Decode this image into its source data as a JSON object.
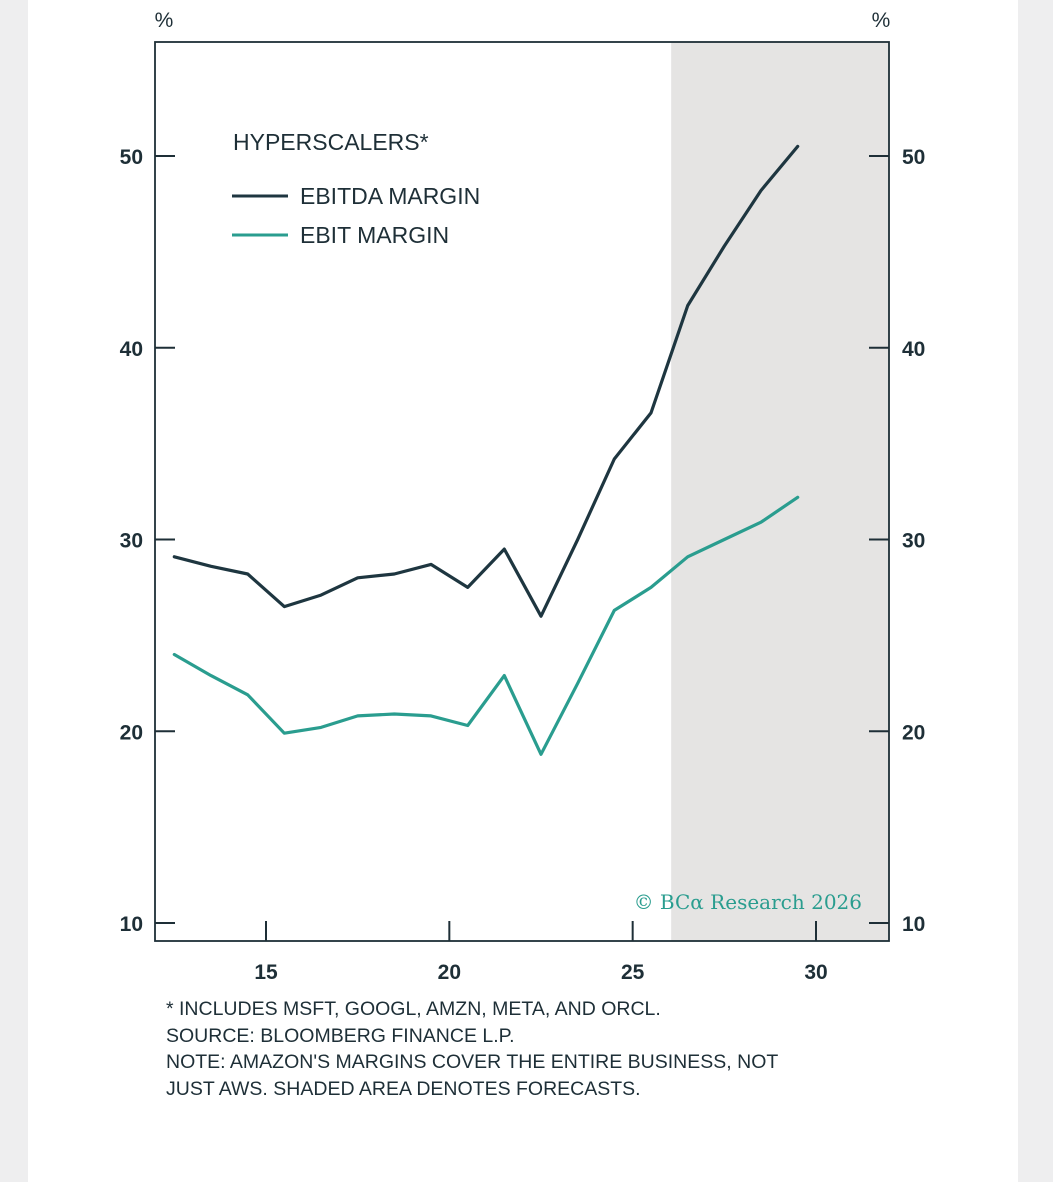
{
  "chart_data": {
    "type": "line",
    "title": "HYPERSCALERS*",
    "unit_left": "%",
    "unit_right": "%",
    "xlim": [
      12.5,
      32
    ],
    "ylim": [
      9,
      56
    ],
    "x_ticks": [
      15,
      20,
      25,
      30
    ],
    "y_ticks": [
      10,
      20,
      30,
      40,
      50
    ],
    "forecast_shade": {
      "from": 26.05,
      "to": 32
    },
    "legend_position": "top-left",
    "series": [
      {
        "name": "EBITDA MARGIN",
        "color": "#1e3640",
        "x": [
          12.5,
          13.5,
          14.5,
          15.5,
          16.5,
          17.5,
          18.5,
          19.5,
          20.5,
          21.5,
          22.5,
          23.5,
          24.5,
          25.5,
          26.5,
          27.5,
          28.5,
          29.5
        ],
        "values": [
          29.1,
          28.6,
          28.2,
          26.5,
          27.1,
          28.0,
          28.2,
          28.7,
          27.5,
          29.5,
          26.0,
          30.0,
          34.2,
          36.6,
          42.2,
          45.3,
          48.2,
          50.5
        ]
      },
      {
        "name": "EBIT MARGIN",
        "color": "#2a9d8f",
        "x": [
          12.5,
          13.5,
          14.5,
          15.5,
          16.5,
          17.5,
          18.5,
          19.5,
          20.5,
          21.5,
          22.5,
          23.5,
          24.5,
          25.5,
          26.5,
          27.5,
          28.5,
          29.5
        ],
        "values": [
          24.0,
          22.9,
          21.9,
          19.9,
          20.2,
          20.8,
          20.9,
          20.8,
          20.3,
          22.9,
          18.8,
          22.5,
          26.3,
          27.5,
          29.1,
          30.0,
          30.9,
          32.2
        ]
      }
    ],
    "watermark": "© BCα Research 2026"
  },
  "notes": [
    "* INCLUDES MSFT, GOOGL, AMZN, META, AND ORCL.",
    "SOURCE: BLOOMBERG FINANCE L.P.",
    "NOTE: AMAZON'S MARGINS COVER THE ENTIRE BUSINESS, NOT",
    "JUST AWS. SHADED AREA DENOTES FORECASTS."
  ],
  "colors": {
    "axis": "#1e2f37",
    "shade": "#e5e4e3",
    "background": "#ffffff",
    "outer": "#eeeeef"
  }
}
